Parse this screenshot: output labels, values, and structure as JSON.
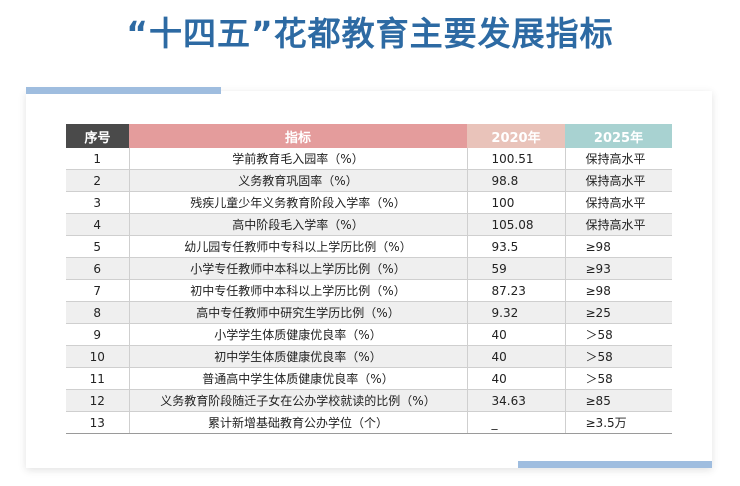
{
  "title": "“十四五”花都教育主要发展指标",
  "table": {
    "headers": [
      "序号",
      "指标",
      "2020年",
      "2025年"
    ],
    "rows": [
      {
        "index": "1",
        "indicator": "学前教育毛入园率（%）",
        "y2020": "100.51",
        "y2025": "保持高水平"
      },
      {
        "index": "2",
        "indicator": "义务教育巩固率（%）",
        "y2020": "98.8",
        "y2025": "保持高水平"
      },
      {
        "index": "3",
        "indicator": "残疾儿童少年义务教育阶段入学率（%）",
        "y2020": "100",
        "y2025": "保持高水平"
      },
      {
        "index": "4",
        "indicator": "高中阶段毛入学率（%）",
        "y2020": "105.08",
        "y2025": "保持高水平"
      },
      {
        "index": "5",
        "indicator": "幼儿园专任教师中专科以上学历比例（%）",
        "y2020": "93.5",
        "y2025": "≥98"
      },
      {
        "index": "6",
        "indicator": "小学专任教师中本科以上学历比例（%）",
        "y2020": "59",
        "y2025": "≥93"
      },
      {
        "index": "7",
        "indicator": "初中专任教师中本科以上学历比例（%）",
        "y2020": "87.23",
        "y2025": "≥98"
      },
      {
        "index": "8",
        "indicator": "高中专任教师中研究生学历比例（%）",
        "y2020": "9.32",
        "y2025": "≥25"
      },
      {
        "index": "9",
        "indicator": "小学学生体质健康优良率（%）",
        "y2020": "40",
        "y2025": "＞58"
      },
      {
        "index": "10",
        "indicator": "初中学生体质健康优良率（%）",
        "y2020": "40",
        "y2025": "＞58"
      },
      {
        "index": "11",
        "indicator": "普通高中学生体质健康优良率（%）",
        "y2020": "40",
        "y2025": "＞58"
      },
      {
        "index": "12",
        "indicator": "义务教育阶段随迁子女在公办学校就读的比例（%）",
        "y2020": "34.63",
        "y2025": "≥85"
      },
      {
        "index": "13",
        "indicator": "累计新增基础教育公办学位（个）",
        "y2020": "_",
        "y2025": "≥3.5万"
      }
    ]
  },
  "colors": {
    "title": "#2d6aa3",
    "header_index": "#4a4a4a",
    "header_indicator": "#e49c9c",
    "header_2020": "#e9c3ba",
    "header_2025": "#a8d2d1",
    "accent_bar": "#9fbddf"
  }
}
